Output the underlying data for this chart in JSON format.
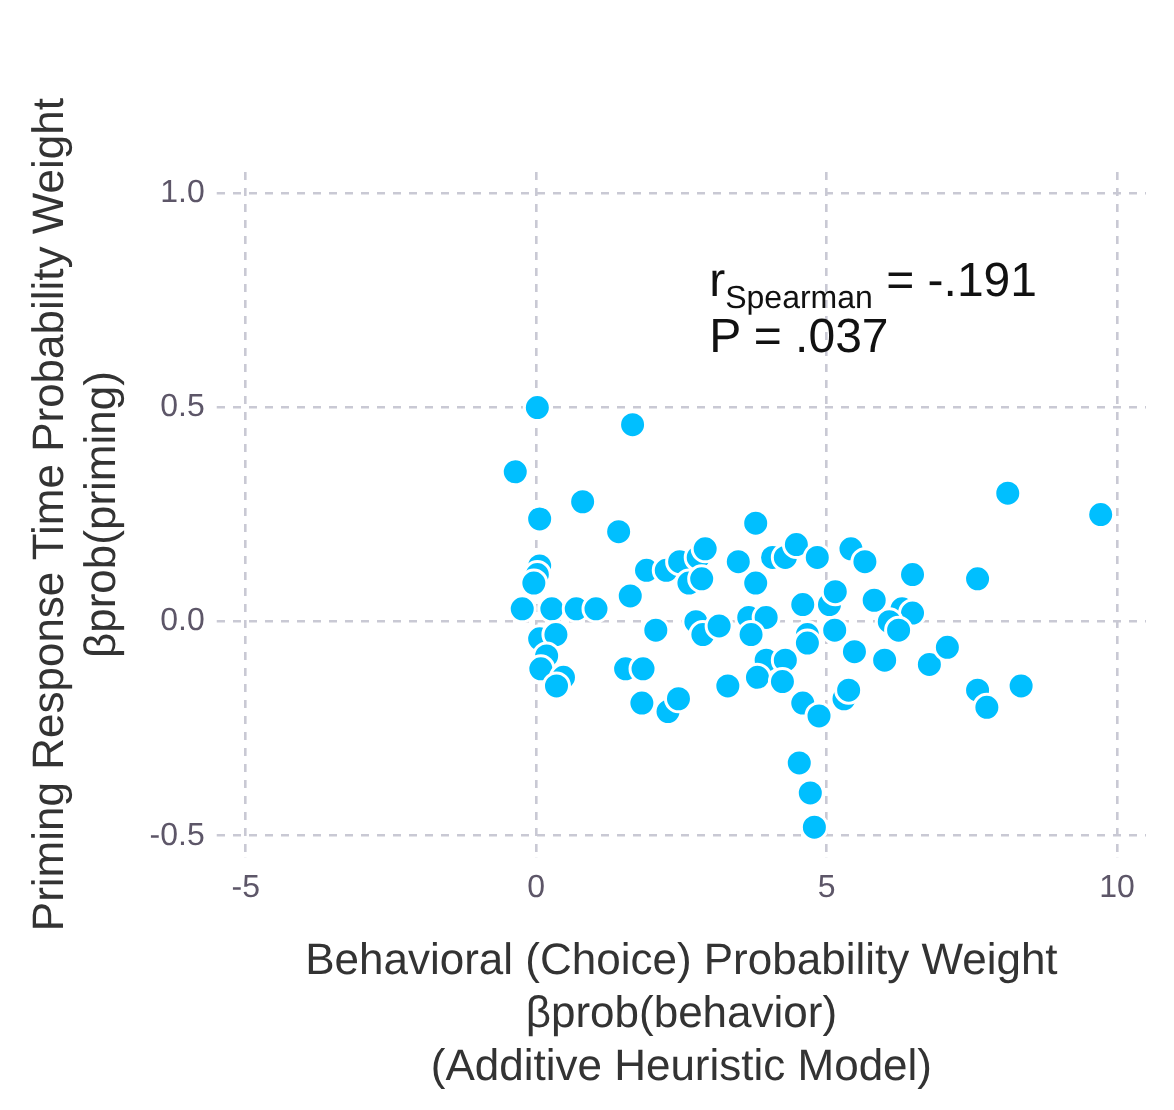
{
  "chart_data": {
    "type": "scatter",
    "xlabel": "Behavioral (Choice) Probability Weight\nβprob(behavior)\n(Additive Heuristic Model)",
    "ylabel": "Priming Response Time Probability Weight\nβprob(priming)",
    "annotations": [
      "r$_{Spearman}$ = -.191",
      "P = .037"
    ],
    "xlim": [
      -5.5,
      10.5
    ],
    "xticks": [
      -5,
      0,
      5,
      10
    ],
    "ylim": [
      -0.55,
      1.05
    ],
    "yticks": [
      {
        "value": -0.5,
        "label": "-0.5"
      },
      {
        "value": 0,
        "label": "0.0"
      },
      {
        "value": 0.5,
        "label": "0.5"
      },
      {
        "value": 1,
        "label": "1.0"
      }
    ],
    "grid": true,
    "marker": "circle",
    "series": [
      {
        "color": "#00bfff",
        "x": [
          0.02,
          1.66,
          -0.36,
          0.8,
          0.06,
          1.42,
          3.78,
          0.06,
          0.02,
          -0.04,
          1.62,
          1.9,
          2.24,
          2.47,
          2.79,
          2.91,
          2.63,
          2.85,
          3.48,
          3.78,
          -0.24,
          0.27,
          0.69,
          1.03,
          0.06,
          0.34,
          0.18,
          0.08,
          0.47,
          0.35,
          1.54,
          1.84,
          2.06,
          1.82,
          2.27,
          2.45,
          2.75,
          2.87,
          3.15,
          3.3,
          3.66,
          3.96,
          3.7,
          3.96,
          3.81,
          4.07,
          8.12,
          9.72,
          4.29,
          4.48,
          4.84,
          5.42,
          5.66,
          6.48,
          7.6,
          4.59,
          5.05,
          5.15,
          5.82,
          6.3,
          6.48,
          6.08,
          6.24,
          4.67,
          4.67,
          5.14,
          5.48,
          4.29,
          6.0,
          6.77,
          7.08,
          4.24,
          4.59,
          4.87,
          5.3,
          5.38,
          7.6,
          7.76,
          8.35,
          4.53,
          4.72,
          4.79
        ],
        "values": [
          0.5,
          0.46,
          0.35,
          0.28,
          0.24,
          0.21,
          0.23,
          0.13,
          0.11,
          0.09,
          0.06,
          0.12,
          0.12,
          0.14,
          0.15,
          0.17,
          0.09,
          0.1,
          0.14,
          0.09,
          0.03,
          0.03,
          0.03,
          0.03,
          -0.04,
          -0.03,
          -0.08,
          -0.11,
          -0.13,
          -0.15,
          -0.11,
          -0.11,
          -0.02,
          -0.19,
          -0.21,
          -0.18,
          0.0,
          -0.03,
          -0.01,
          -0.15,
          0.01,
          0.01,
          -0.03,
          -0.09,
          -0.13,
          0.15,
          0.3,
          0.25,
          0.15,
          0.18,
          0.15,
          0.17,
          0.14,
          0.11,
          0.1,
          0.04,
          0.04,
          0.07,
          0.05,
          0.03,
          0.02,
          0.0,
          -0.02,
          -0.03,
          -0.05,
          -0.02,
          -0.07,
          -0.09,
          -0.09,
          -0.1,
          -0.06,
          -0.14,
          -0.19,
          -0.22,
          -0.18,
          -0.16,
          -0.16,
          -0.2,
          -0.15,
          -0.33,
          -0.4,
          -0.48
        ]
      }
    ]
  }
}
